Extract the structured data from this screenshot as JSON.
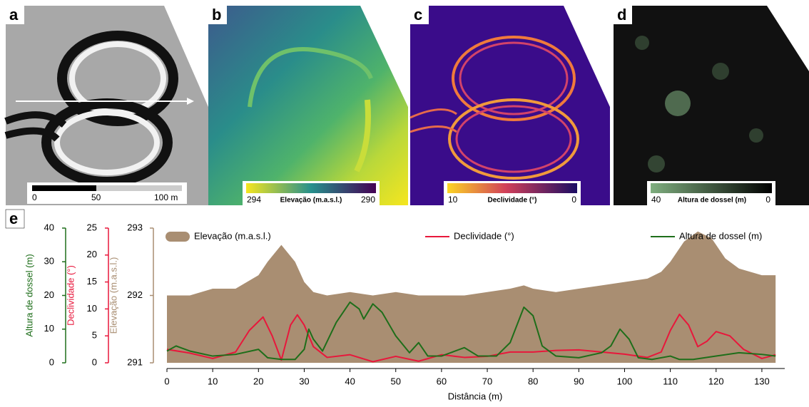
{
  "panels": [
    {
      "label": "a",
      "scale_bar": [
        "0",
        "50",
        "100 m"
      ]
    },
    {
      "label": "b",
      "colorbar": {
        "min_label": "294",
        "title": "Elevação (m.a.s.l.)",
        "max_label": "290"
      }
    },
    {
      "label": "c",
      "colorbar": {
        "min_label": "10",
        "title": "Declividade (°)",
        "max_label": "0"
      }
    },
    {
      "label": "d",
      "colorbar": {
        "min_label": "40",
        "title": "Altura de dossel (m)",
        "max_label": "0"
      }
    }
  ],
  "chart_data": {
    "type": "line",
    "label": "e",
    "x_label": "Distância (m)",
    "xlim": [
      0,
      135
    ],
    "xticks": [
      0,
      10,
      20,
      30,
      40,
      50,
      60,
      70,
      80,
      90,
      100,
      110,
      120,
      130
    ],
    "y_label": "Elevação (m.a.s.l.)",
    "ylim": [
      291,
      293
    ],
    "yticks": [
      291,
      292,
      293
    ],
    "y_color": "#a98e72",
    "y2_label": "Declividade (°)",
    "y2lim": [
      0,
      25
    ],
    "y2ticks": [
      0,
      5,
      10,
      15,
      20,
      25
    ],
    "y2_color": "#e8173b",
    "y3_label": "Altura de dossel (m)",
    "y3lim": [
      0,
      40
    ],
    "y3ticks": [
      0,
      10,
      20,
      30,
      40
    ],
    "y3_color": "#1e6e1a",
    "series": [
      {
        "name": "Elevação (m.a.s.l.)",
        "style": "area",
        "axis": "y",
        "color": "#a98e72",
        "x": [
          0,
          5,
          10,
          15,
          20,
          22,
          25,
          28,
          30,
          32,
          35,
          40,
          45,
          50,
          55,
          60,
          65,
          70,
          75,
          78,
          80,
          85,
          90,
          95,
          100,
          105,
          108,
          110,
          113,
          116,
          119,
          122,
          125,
          130,
          133
        ],
        "values": [
          292.0,
          292.0,
          292.1,
          292.1,
          292.3,
          292.5,
          292.75,
          292.5,
          292.2,
          292.05,
          292.0,
          292.05,
          292.0,
          292.05,
          292.0,
          292.0,
          292.0,
          292.05,
          292.1,
          292.15,
          292.1,
          292.05,
          292.1,
          292.15,
          292.2,
          292.25,
          292.35,
          292.5,
          292.8,
          292.95,
          292.85,
          292.55,
          292.4,
          292.3,
          292.3
        ]
      },
      {
        "name": "Declividade (°)",
        "style": "line",
        "axis": "y2",
        "color": "#e8173b",
        "x": [
          0,
          5,
          10,
          15,
          18,
          21,
          23,
          25,
          27,
          28.5,
          30,
          32,
          35,
          40,
          45,
          50,
          55,
          60,
          65,
          70,
          75,
          80,
          85,
          90,
          95,
          100,
          105,
          108,
          110,
          112,
          114,
          116,
          118,
          120,
          123,
          126,
          130,
          133
        ],
        "values": [
          2.5,
          1.8,
          0.8,
          2,
          6,
          8.5,
          5,
          0.5,
          7,
          8.9,
          7,
          3,
          1,
          1.5,
          0.2,
          1.2,
          0.3,
          1.5,
          1,
          1.2,
          2,
          2,
          2.3,
          2.4,
          2,
          1.6,
          1,
          2,
          6,
          9,
          7,
          3,
          4,
          5.8,
          5,
          2.5,
          0.8,
          1.5
        ]
      },
      {
        "name": "Altura de dossel (m)",
        "style": "line",
        "axis": "y3",
        "color": "#1e6e1a",
        "x": [
          0,
          2,
          5,
          10,
          15,
          20,
          22,
          25,
          28,
          30,
          31,
          32,
          34,
          37,
          40,
          42,
          43,
          45,
          47,
          50,
          53,
          55,
          57,
          60,
          62,
          65,
          68,
          72,
          75,
          78,
          80,
          82,
          85,
          90,
          95,
          97,
          99,
          101,
          103,
          106,
          110,
          112,
          115,
          120,
          125,
          130,
          133
        ],
        "values": [
          3.5,
          5,
          3.5,
          2,
          2.5,
          4,
          1.5,
          1,
          1,
          4,
          10,
          7,
          3.5,
          12,
          18,
          16,
          13,
          17.5,
          15,
          8,
          3,
          6,
          2,
          2,
          3,
          4.5,
          2,
          2,
          6,
          16.5,
          14,
          5,
          2,
          1.5,
          3,
          5,
          10,
          7,
          1.5,
          1,
          2,
          1,
          1,
          2,
          3,
          2.5,
          2
        ]
      }
    ]
  }
}
